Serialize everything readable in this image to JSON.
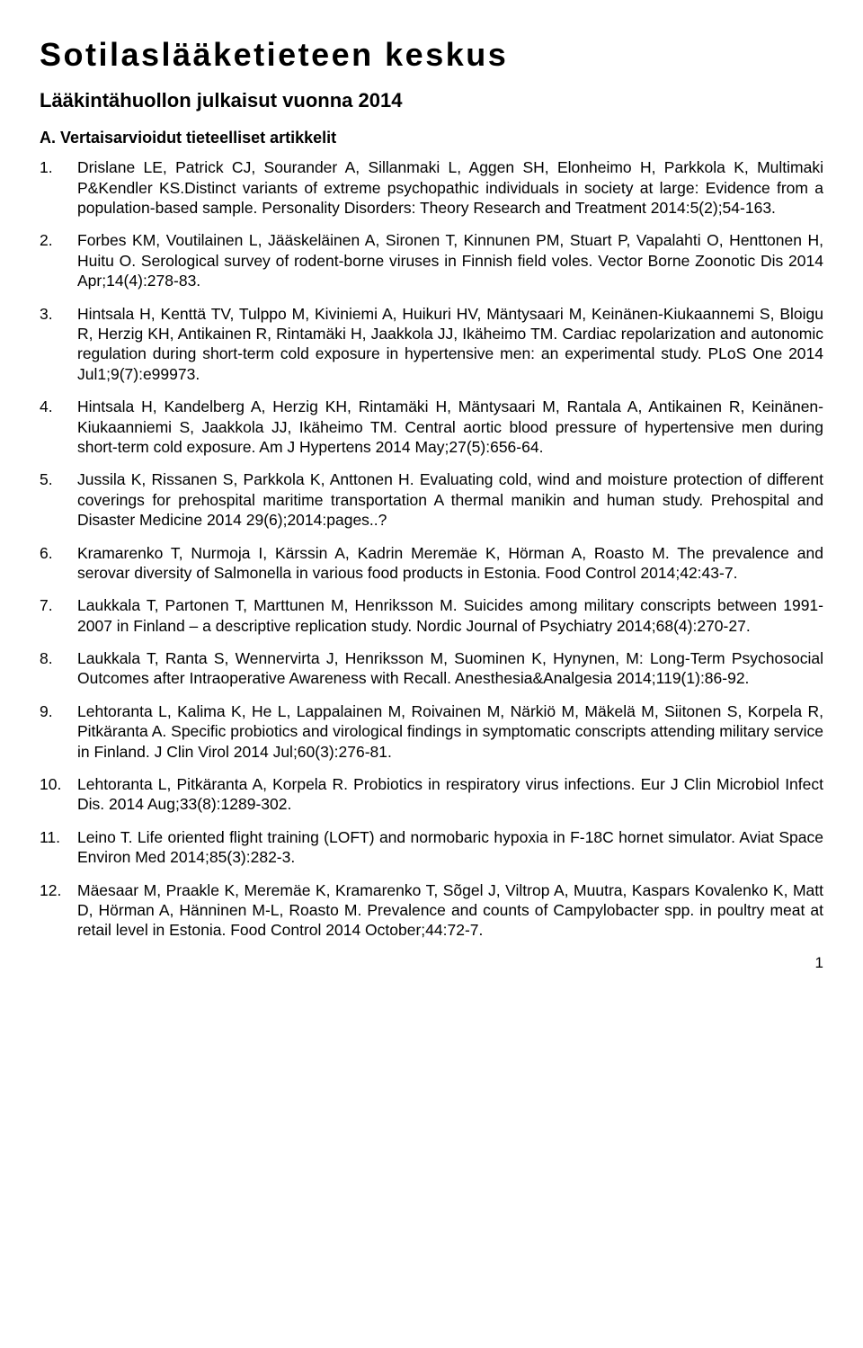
{
  "title": "Sotilaslääketieteen keskus",
  "subtitle": "Lääkintähuollon julkaisut vuonna 2014",
  "section_heading": "A.   Vertaisarvioidut tieteelliset artikkelit",
  "page_number": "1",
  "items": [
    {
      "n": "1.",
      "text": "Drislane LE, Patrick CJ, Sourander A, Sillanmaki L, Aggen SH, Elonheimo H, Parkkola K, Multimaki P&Kendler KS.Distinct variants of extreme psychopathic individuals in society at large: Evidence from a population-based sample. Personality Disorders: Theory Research and Treatment 2014:5(2);54-163."
    },
    {
      "n": "2.",
      "text": "Forbes KM, Voutilainen L, Jääskeläinen A, Sironen T, Kinnunen PM, Stuart P, Vapalahti O, Henttonen H, Huitu O. Serological survey of rodent-borne viruses in Finnish field voles. Vector Borne Zoonotic Dis 2014 Apr;14(4):278-83."
    },
    {
      "n": "3.",
      "text": "Hintsala H, Kenttä TV, Tulppo M, Kiviniemi A, Huikuri HV, Mäntysaari M, Keinänen-Kiukaannemi S, Bloigu R, Herzig KH, Antikainen R, Rintamäki H, Jaakkola JJ, Ikäheimo TM. Cardiac repolarization and autonomic regulation during short-term cold exposure in hypertensive men: an experimental study. PLoS One 2014 Jul1;9(7):e99973."
    },
    {
      "n": "4.",
      "text": "Hintsala H, Kandelberg A, Herzig KH, Rintamäki H, Mäntysaari M, Rantala A, Antikainen R, Keinänen-Kiukaanniemi S, Jaakkola JJ, Ikäheimo TM. Central aortic blood pressure of hypertensive men during short-term cold exposure. Am J Hypertens 2014 May;27(5):656-64."
    },
    {
      "n": "5.",
      "text": "Jussila K, Rissanen S, Parkkola K, Anttonen H. Evaluating cold, wind and moisture protection of different coverings for prehospital maritime transportation  A thermal manikin and human study. Prehospital and Disaster Medicine 2014 29(6);2014:pages..?"
    },
    {
      "n": "6.",
      "text": "Kramarenko T, Nurmoja I, Kärssin A, Kadrin Meremäe K, Hörman A, Roasto M. The prevalence and serovar diversity of Salmonella in various food products in Estonia. Food Control 2014;42:43-7."
    },
    {
      "n": "7.",
      "text": "Laukkala T, Partonen T, Marttunen M, Henriksson M. Suicides among military conscripts between 1991-2007 in Finland – a descriptive replication study. Nordic Journal of Psychiatry 2014;68(4):270-27."
    },
    {
      "n": "8.",
      "text": "Laukkala T, Ranta S, Wennervirta J, Henriksson M, Suominen K, Hynynen, M: Long-Term Psychosocial Outcomes after Intraoperative Awareness with Recall. Anesthesia&Analgesia 2014;119(1):86-92."
    },
    {
      "n": "9.",
      "text": "Lehtoranta L, Kalima K, He L, Lappalainen M, Roivainen M, Närkiö M, Mäkelä M, Siitonen S, Korpela R, Pitkäranta A. Specific probiotics and virological findings in symptomatic conscripts attending military service in Finland. J Clin Virol 2014 Jul;60(3):276-81."
    },
    {
      "n": "10.",
      "text": "Lehtoranta L, Pitkäranta A, Korpela R. Probiotics in respiratory virus infections. Eur J Clin Microbiol Infect Dis. 2014 Aug;33(8):1289-302."
    },
    {
      "n": "11.",
      "text": "Leino T. Life oriented flight training (LOFT) and normobaric hypoxia in F-18C hornet simulator. Aviat Space Environ Med 2014;85(3):282-3."
    },
    {
      "n": "12.",
      "text": "Mäesaar M, Praakle K, Meremäe K, Kramarenko T, Sõgel J, Viltrop A, Muutra, Kaspars Kovalenko K, Matt D, Hörman A, Hänninen M-L, Roasto M. Prevalence and counts of Campylobacter spp. in poultry meat at retail level in Estonia. Food Control 2014 October;44:72-7."
    }
  ]
}
